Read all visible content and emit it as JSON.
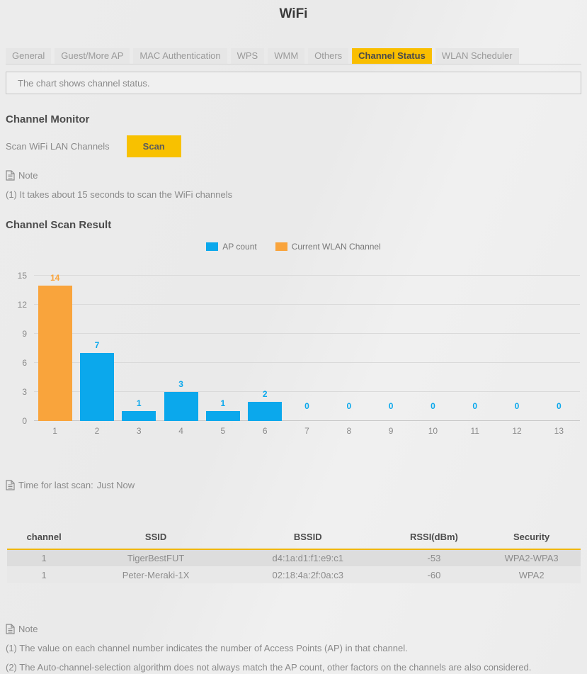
{
  "page": {
    "title": "WiFi"
  },
  "tabs": {
    "items": [
      {
        "label": "General",
        "active": false
      },
      {
        "label": "Guest/More AP",
        "active": false
      },
      {
        "label": "MAC Authentication",
        "active": false
      },
      {
        "label": "WPS",
        "active": false
      },
      {
        "label": "WMM",
        "active": false
      },
      {
        "label": "Others",
        "active": false
      },
      {
        "label": "Channel Status",
        "active": true
      },
      {
        "label": "WLAN Scheduler",
        "active": false
      }
    ]
  },
  "info_banner": {
    "text": "The chart shows channel status."
  },
  "channel_monitor": {
    "heading": "Channel Monitor",
    "scan_label": "Scan WiFi LAN Channels",
    "scan_button": "Scan",
    "note_title": "Note",
    "note_items": [
      "(1) It takes about 15 seconds to scan the WiFi channels"
    ]
  },
  "scan_result": {
    "heading": "Channel Scan Result",
    "last_scan_label": "Time for last scan:",
    "last_scan_value": "Just Now"
  },
  "chart_data": {
    "type": "bar",
    "title": "Channel Scan Result",
    "xlabel": "",
    "ylabel": "",
    "categories": [
      1,
      2,
      3,
      4,
      5,
      6,
      7,
      8,
      9,
      10,
      11,
      12,
      13
    ],
    "values": [
      14,
      7,
      1,
      3,
      1,
      2,
      0,
      0,
      0,
      0,
      0,
      0,
      0
    ],
    "current_channel": 1,
    "ylim": [
      0,
      15
    ],
    "yticks": [
      0,
      3,
      6,
      9,
      12,
      15
    ],
    "grid": true,
    "legend_position": "top-center",
    "legend": [
      {
        "label": "AP count",
        "color": "#0ba8ec"
      },
      {
        "label": "Current WLAN Channel",
        "color": "#f9a43c"
      }
    ],
    "bar_color": "#0ba8ec",
    "highlight_color": "#f9a43c"
  },
  "table": {
    "headers": [
      "channel",
      "SSID",
      "BSSID",
      "RSSI(dBm)",
      "Security"
    ],
    "rows": [
      [
        "1",
        "TigerBestFUT",
        "d4:1a:d1:f1:e9:c1",
        "-53",
        "WPA2-WPA3"
      ],
      [
        "1",
        "Peter-Meraki-1X",
        "02:18:4a:2f:0a:c3",
        "-60",
        "WPA2"
      ]
    ]
  },
  "bottom_note": {
    "title": "Note",
    "items": [
      "(1) The value on each channel number indicates the number of Access Points (AP) in that channel.",
      "(2) The Auto-channel-selection algorithm does not always match the AP count, other factors on the channels are also considered."
    ]
  },
  "colors": {
    "accent_yellow": "#f9be00",
    "bar_blue": "#0ba8ec",
    "bar_orange": "#f9a43c",
    "heading_text": "#4c4c4c",
    "body_text": "#8a8a8a"
  }
}
